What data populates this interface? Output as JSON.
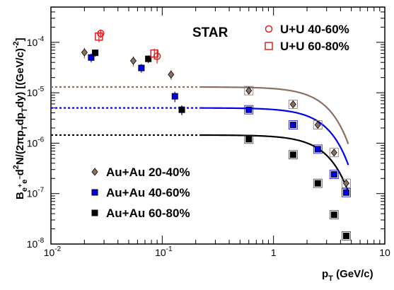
{
  "chart_data": {
    "type": "scatter",
    "title": "STAR",
    "xlabel_main": "p",
    "xlabel_sub": "T",
    "xlabel_unit": " (GeV/c)",
    "ylabel": "B_ee d²N/(2πp_T dp_T dy) [(GeV/c)^-2]",
    "ylabel_parts": [
      {
        "t": "B",
        "s": "n"
      },
      {
        "t": "e",
        "s": "sub"
      },
      {
        "t": "+",
        "s": "subsup"
      },
      {
        "t": "e",
        "s": "sub"
      },
      {
        "t": "−",
        "s": "subsup"
      },
      {
        "t": "d",
        "s": "n"
      },
      {
        "t": "2",
        "s": "sup"
      },
      {
        "t": "N/(2πp",
        "s": "n"
      },
      {
        "t": "T",
        "s": "sub"
      },
      {
        "t": "dp",
        "s": "n"
      },
      {
        "t": "T",
        "s": "sub"
      },
      {
        "t": "dy) [(GeV/c)",
        "s": "n"
      },
      {
        "t": "-2",
        "s": "sup"
      },
      {
        "t": "]",
        "s": "n"
      }
    ],
    "xscale": "log",
    "yscale": "log",
    "xlim": [
      0.01,
      10
    ],
    "ylim": [
      1e-08,
      0.0005
    ],
    "x_ticks": [
      {
        "value": 0.01,
        "base": "10",
        "exp": "-2"
      },
      {
        "value": 0.1,
        "base": "10",
        "exp": "-1"
      },
      {
        "value": 1,
        "base": "1",
        "exp": ""
      },
      {
        "value": 10,
        "base": "10",
        "exp": ""
      }
    ],
    "y_ticks": [
      {
        "value": 1e-08,
        "base": "10",
        "exp": "-8"
      },
      {
        "value": 1e-07,
        "base": "10",
        "exp": "-7"
      },
      {
        "value": 1e-06,
        "base": "10",
        "exp": "-6"
      },
      {
        "value": 1e-05,
        "base": "10",
        "exp": "-5"
      },
      {
        "value": 0.0001,
        "base": "10",
        "exp": "-4"
      }
    ],
    "series": [
      {
        "name": "Au+Au 20-40%",
        "color": "#8b7062",
        "marker": "diamond",
        "fit_plateau": 1.3e-05,
        "points": [
          {
            "x": 0.02,
            "y": 6.3e-05,
            "err": 1.5e-05
          },
          {
            "x": 0.055,
            "y": 4.3e-05,
            "err": 1e-05
          },
          {
            "x": 0.12,
            "y": 2.3e-05,
            "err": 5e-06
          },
          {
            "x": 0.6,
            "y": 1.1e-05,
            "err": 1e-06
          },
          {
            "x": 1.5,
            "y": 5.9e-06,
            "err": 5e-07
          },
          {
            "x": 2.5,
            "y": 2.3e-06,
            "err": 2e-07
          },
          {
            "x": 3.5,
            "y": 6.5e-07,
            "err": 6e-08
          },
          {
            "x": 4.5,
            "y": 1.6e-07,
            "err": 2e-08
          }
        ]
      },
      {
        "name": "Au+Au 40-60%",
        "color": "#0000ee",
        "marker": "circle",
        "fit_plateau": 5e-06,
        "points": [
          {
            "x": 0.023,
            "y": 5e-05,
            "err": 1e-05
          },
          {
            "x": 0.065,
            "y": 3.1e-05,
            "err": 6e-06
          },
          {
            "x": 0.13,
            "y": 8.5e-06,
            "err": 2e-06
          },
          {
            "x": 0.6,
            "y": 4.6e-06,
            "err": 4e-07
          },
          {
            "x": 1.5,
            "y": 2.3e-06,
            "err": 2e-07
          },
          {
            "x": 2.5,
            "y": 7.6e-07,
            "err": 6e-08
          },
          {
            "x": 3.5,
            "y": 2.4e-07,
            "err": 2e-08
          },
          {
            "x": 4.5,
            "y": 1.05e-07,
            "err": 1e-08
          }
        ]
      },
      {
        "name": "Au+Au 60-80%",
        "color": "#000000",
        "marker": "square",
        "fit_plateau": 1.45e-06,
        "points": [
          {
            "x": 0.025,
            "y": 6.2e-05,
            "err": 1e-05
          },
          {
            "x": 0.075,
            "y": 4.7e-05,
            "err": 8e-06
          },
          {
            "x": 0.15,
            "y": 4.6e-06,
            "err": 1e-06
          },
          {
            "x": 0.6,
            "y": 1.2e-06,
            "err": 1e-07
          },
          {
            "x": 1.5,
            "y": 5.9e-07,
            "err": 5e-08
          },
          {
            "x": 2.5,
            "y": 1.6e-07,
            "err": 1.5e-08
          },
          {
            "x": 3.5,
            "y": 3.8e-08,
            "err": 4e-09
          },
          {
            "x": 4.5,
            "y": 1.45e-08,
            "err": 2e-09
          }
        ]
      },
      {
        "name": "U+U 40-60%",
        "color": "#e02020",
        "marker": "open-circle",
        "points": [
          {
            "x": 0.028,
            "y": 0.00015,
            "err": 3e-05
          },
          {
            "x": 0.09,
            "y": 5.3e-05,
            "err": 1.5e-05
          }
        ]
      },
      {
        "name": "U+U 60-80%",
        "color": "#e02020",
        "marker": "open-square",
        "points": [
          {
            "x": 0.027,
            "y": 0.00013,
            "err": 3e-05
          },
          {
            "x": 0.085,
            "y": 6e-05,
            "err": 1.5e-05
          }
        ]
      }
    ],
    "legend_top_right": [
      "U+U 40-60%",
      "U+U 60-80%"
    ],
    "legend_bottom_left": [
      "Au+Au 20-40%",
      "Au+Au 40-60%",
      "Au+Au 60-80%"
    ]
  }
}
